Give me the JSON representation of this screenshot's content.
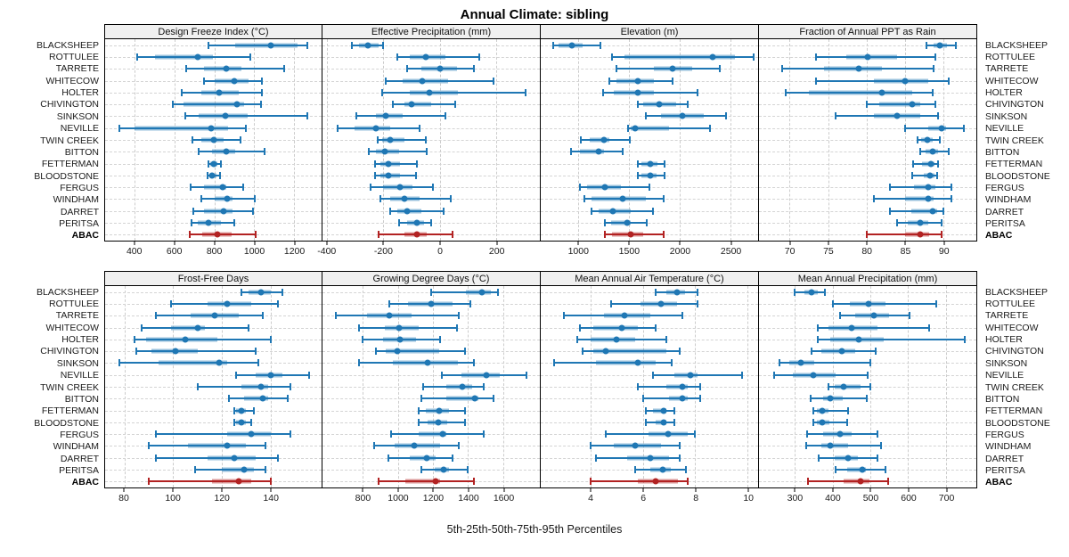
{
  "title": "Annual Climate: sibling",
  "caption": "5th-25th-50th-75th-95th Percentiles",
  "chart_data": {
    "type": "scatter",
    "subtype": "percentile-interval-dotplot",
    "percentile_labels": [
      "5th",
      "25th",
      "50th",
      "75th",
      "95th"
    ],
    "legend_position": "none",
    "grid": "dashed",
    "layout": {
      "rows": 2,
      "cols": 4
    },
    "colors": {
      "series": "#1f77b4",
      "series_band": "rgba(31,119,180,0.45)",
      "highlight": "#b22222",
      "highlight_band": "rgba(178,34,34,0.45)",
      "strip_bg": "#f0f0f0"
    },
    "categories": [
      "BLACKSHEEP",
      "ROTTULEE",
      "TARRETE",
      "WHITECOW",
      "HOLTER",
      "CHIVINGTON",
      "SINKSON",
      "NEVILLE",
      "TWIN CREEK",
      "BITTON",
      "FETTERMAN",
      "BLOODSTONE",
      "FERGUS",
      "WINDHAM",
      "DARRET",
      "PERITSA",
      "ABAC"
    ],
    "highlight_category": "ABAC",
    "panels": [
      {
        "title": "Design Freeze Index (°C)",
        "xlim": [
          250,
          1340
        ],
        "ticks": [
          400,
          600,
          800,
          1000,
          1200
        ],
        "values": [
          [
            770,
            905,
            1085,
            1220,
            1270
          ],
          [
            410,
            500,
            715,
            795,
            980
          ],
          [
            660,
            750,
            860,
            935,
            1150
          ],
          [
            750,
            800,
            900,
            970,
            1040
          ],
          [
            635,
            735,
            825,
            925,
            1040
          ],
          [
            590,
            645,
            915,
            950,
            1035
          ],
          [
            655,
            720,
            855,
            970,
            1270
          ],
          [
            320,
            400,
            785,
            870,
            960
          ],
          [
            690,
            735,
            795,
            845,
            930
          ],
          [
            720,
            790,
            860,
            905,
            1055
          ],
          [
            770,
            780,
            795,
            815,
            835
          ],
          [
            765,
            778,
            790,
            810,
            830
          ],
          [
            680,
            750,
            840,
            860,
            945
          ],
          [
            735,
            800,
            865,
            890,
            1005
          ],
          [
            695,
            750,
            845,
            890,
            995
          ],
          [
            685,
            715,
            770,
            835,
            900
          ],
          [
            675,
            740,
            815,
            885,
            1010
          ]
        ]
      },
      {
        "title": "Effective Precipitation (mm)",
        "xlim": [
          -415,
          355
        ],
        "ticks": [
          -400,
          -200,
          0,
          200
        ],
        "values": [
          [
            -310,
            -285,
            -255,
            -215,
            -200
          ],
          [
            -150,
            -105,
            -50,
            20,
            140
          ],
          [
            -115,
            -65,
            0,
            60,
            120
          ],
          [
            -190,
            -130,
            -60,
            30,
            190
          ],
          [
            -205,
            -105,
            -35,
            65,
            305
          ],
          [
            -165,
            -125,
            -100,
            -30,
            55
          ],
          [
            -295,
            -225,
            -190,
            -130,
            20
          ],
          [
            -360,
            -300,
            -225,
            -175,
            -70
          ],
          [
            -220,
            -205,
            -175,
            -125,
            -50
          ],
          [
            -250,
            -225,
            -195,
            -145,
            -45
          ],
          [
            -230,
            -210,
            -180,
            -140,
            -80
          ],
          [
            -230,
            -210,
            -180,
            -142,
            -85
          ],
          [
            -245,
            -200,
            -140,
            -95,
            -25
          ],
          [
            -210,
            -175,
            -125,
            -70,
            40
          ],
          [
            -175,
            -150,
            -115,
            -65,
            15
          ],
          [
            -145,
            -115,
            -80,
            -55,
            -30
          ],
          [
            -215,
            -125,
            -80,
            -45,
            45
          ]
        ]
      },
      {
        "title": "Elevation (m)",
        "xlim": [
          630,
          2775
        ],
        "ticks": [
          1000,
          1500,
          2000,
          2500
        ],
        "values": [
          [
            750,
            805,
            940,
            1045,
            1220
          ],
          [
            1335,
            1460,
            2325,
            2545,
            2730
          ],
          [
            1380,
            1750,
            1935,
            2125,
            2395
          ],
          [
            1310,
            1380,
            1585,
            1750,
            1930
          ],
          [
            1245,
            1355,
            1585,
            1750,
            2175
          ],
          [
            1590,
            1645,
            1795,
            1970,
            2080
          ],
          [
            1665,
            1820,
            2025,
            2240,
            2460
          ],
          [
            1490,
            1520,
            1560,
            1900,
            2300
          ],
          [
            1025,
            1115,
            1255,
            1310,
            1505
          ],
          [
            930,
            1020,
            1205,
            1250,
            1440
          ],
          [
            1590,
            1620,
            1715,
            1780,
            1855
          ],
          [
            1590,
            1620,
            1710,
            1775,
            1855
          ],
          [
            1020,
            1090,
            1265,
            1425,
            1705
          ],
          [
            1060,
            1135,
            1440,
            1665,
            1840
          ],
          [
            1135,
            1205,
            1345,
            1515,
            1735
          ],
          [
            1265,
            1325,
            1485,
            1515,
            1680
          ],
          [
            1265,
            1335,
            1520,
            1645,
            1840
          ]
        ]
      },
      {
        "title": "Fraction of Annual PPT as Rain",
        "xlim": [
          66,
          94.3
        ],
        "ticks": [
          70,
          75,
          80,
          85,
          90
        ],
        "values": [
          [
            87.8,
            88.7,
            89.6,
            90.5,
            91.6
          ],
          [
            73.4,
            77.4,
            80.2,
            84,
            89
          ],
          [
            69,
            74.5,
            79,
            82,
            88.7
          ],
          [
            73.4,
            81,
            85,
            88,
            90.7
          ],
          [
            69.5,
            72.5,
            82,
            86,
            88.6
          ],
          [
            80,
            81.6,
            86,
            87,
            89
          ],
          [
            76,
            81,
            84,
            87,
            89.3
          ],
          [
            85,
            88,
            89.8,
            90.4,
            92.7
          ],
          [
            86.6,
            87.1,
            87.9,
            88.6,
            89.5
          ],
          [
            87,
            87.7,
            88.6,
            89.3,
            90.7
          ],
          [
            86.1,
            87.2,
            88.4,
            88.9,
            89.3
          ],
          [
            86,
            87.4,
            88.3,
            88.8,
            89.2
          ],
          [
            83,
            86.2,
            88,
            89,
            91
          ],
          [
            81,
            85,
            88,
            88.7,
            91
          ],
          [
            83,
            85.8,
            88.6,
            89.2,
            90
          ],
          [
            84,
            85.4,
            87,
            88,
            89.8
          ],
          [
            80,
            85,
            87,
            88.1,
            89.8
          ]
        ]
      },
      {
        "title": "Frost-Free Days",
        "xlim": [
          72,
          161
        ],
        "ticks": [
          80,
          100,
          120,
          140
        ],
        "values": [
          [
            128,
            131,
            136,
            140,
            145
          ],
          [
            99,
            114,
            122,
            132,
            143
          ],
          [
            93,
            107,
            117,
            127,
            137
          ],
          [
            87,
            99,
            110,
            113,
            131
          ],
          [
            84,
            89,
            105,
            118,
            140
          ],
          [
            85,
            91,
            101,
            110,
            134
          ],
          [
            78,
            94,
            119,
            122,
            135
          ],
          [
            126,
            134,
            140,
            145,
            156
          ],
          [
            110,
            128,
            136,
            139,
            148
          ],
          [
            123,
            129,
            137,
            139,
            147
          ],
          [
            125,
            126,
            128,
            130,
            133
          ],
          [
            125,
            126,
            128,
            130,
            132
          ],
          [
            93,
            122,
            132,
            140,
            148
          ],
          [
            90,
            106,
            122,
            130,
            138
          ],
          [
            93,
            114,
            125,
            134,
            143
          ],
          [
            109,
            120,
            129,
            133,
            138
          ],
          [
            90,
            116,
            127,
            132,
            140
          ]
        ]
      },
      {
        "title": "Growing Degree Days (°C)",
        "xlim": [
          570,
          1810
        ],
        "ticks": [
          800,
          1000,
          1200,
          1400,
          1600
        ],
        "values": [
          [
            1190,
            1390,
            1480,
            1530,
            1570
          ],
          [
            950,
            1060,
            1190,
            1310,
            1415
          ],
          [
            645,
            825,
            950,
            1080,
            1350
          ],
          [
            780,
            925,
            1005,
            1120,
            1335
          ],
          [
            800,
            915,
            1010,
            1105,
            1240
          ],
          [
            875,
            930,
            995,
            1235,
            1385
          ],
          [
            780,
            970,
            1170,
            1340,
            1435
          ],
          [
            1250,
            1365,
            1505,
            1580,
            1735
          ],
          [
            1145,
            1275,
            1370,
            1425,
            1490
          ],
          [
            1135,
            1275,
            1440,
            1460,
            1545
          ],
          [
            1120,
            1160,
            1235,
            1290,
            1385
          ],
          [
            1120,
            1170,
            1230,
            1280,
            1385
          ],
          [
            960,
            1120,
            1255,
            1275,
            1490
          ],
          [
            865,
            980,
            1095,
            1240,
            1350
          ],
          [
            945,
            1070,
            1165,
            1215,
            1310
          ],
          [
            1135,
            1210,
            1260,
            1290,
            1400
          ],
          [
            890,
            1045,
            1215,
            1240,
            1435
          ]
        ]
      },
      {
        "title": "Mean Annual Air Temperature (°C)",
        "xlim": [
          2.1,
          10.4
        ],
        "ticks": [
          4,
          6,
          8,
          10
        ],
        "values": [
          [
            6.5,
            6.9,
            7.3,
            7.6,
            8.1
          ],
          [
            4.8,
            5.9,
            6.7,
            7.3,
            8.1
          ],
          [
            3.0,
            4.5,
            5.3,
            6.3,
            7.5
          ],
          [
            3.6,
            4.1,
            5.2,
            5.8,
            6.5
          ],
          [
            3.5,
            4.0,
            5.0,
            5.7,
            6.9
          ],
          [
            3.7,
            4.1,
            4.6,
            6.9,
            7.4
          ],
          [
            2.6,
            4.2,
            5.8,
            6.5,
            7.1
          ],
          [
            6.4,
            7.2,
            7.8,
            8.1,
            9.8
          ],
          [
            5.8,
            6.9,
            7.5,
            7.7,
            8.2
          ],
          [
            6.0,
            7.0,
            7.5,
            7.7,
            8.2
          ],
          [
            6.1,
            6.4,
            6.8,
            6.9,
            7.2
          ],
          [
            6.1,
            6.5,
            6.8,
            6.9,
            7.2
          ],
          [
            4.6,
            6.2,
            6.95,
            7.7,
            8.0
          ],
          [
            4.0,
            4.9,
            5.7,
            6.7,
            7.4
          ],
          [
            4.2,
            5.4,
            6.3,
            7.0,
            7.4
          ],
          [
            5.7,
            6.3,
            6.75,
            7.05,
            7.65
          ],
          [
            4.0,
            5.8,
            6.5,
            7.35,
            7.7
          ]
        ]
      },
      {
        "title": "Mean Annual Precipitation (mm)",
        "xlim": [
          205,
          781
        ],
        "ticks": [
          300,
          400,
          500,
          600,
          700
        ],
        "values": [
          [
            300,
            325,
            345,
            360,
            380
          ],
          [
            400,
            445,
            495,
            540,
            675
          ],
          [
            420,
            460,
            510,
            550,
            605
          ],
          [
            360,
            390,
            450,
            520,
            655
          ],
          [
            360,
            395,
            470,
            535,
            750
          ],
          [
            345,
            370,
            425,
            460,
            515
          ],
          [
            260,
            285,
            317,
            352,
            500
          ],
          [
            245,
            295,
            348,
            407,
            493
          ],
          [
            390,
            405,
            430,
            475,
            500
          ],
          [
            343,
            374,
            395,
            426,
            490
          ],
          [
            350,
            358,
            372,
            390,
            440
          ],
          [
            350,
            358,
            372,
            392,
            438
          ],
          [
            333,
            374,
            420,
            450,
            520
          ],
          [
            330,
            370,
            395,
            440,
            528
          ],
          [
            362,
            405,
            440,
            468,
            520
          ],
          [
            407,
            438,
            478,
            488,
            540
          ],
          [
            335,
            430,
            473,
            497,
            547
          ]
        ]
      }
    ]
  }
}
